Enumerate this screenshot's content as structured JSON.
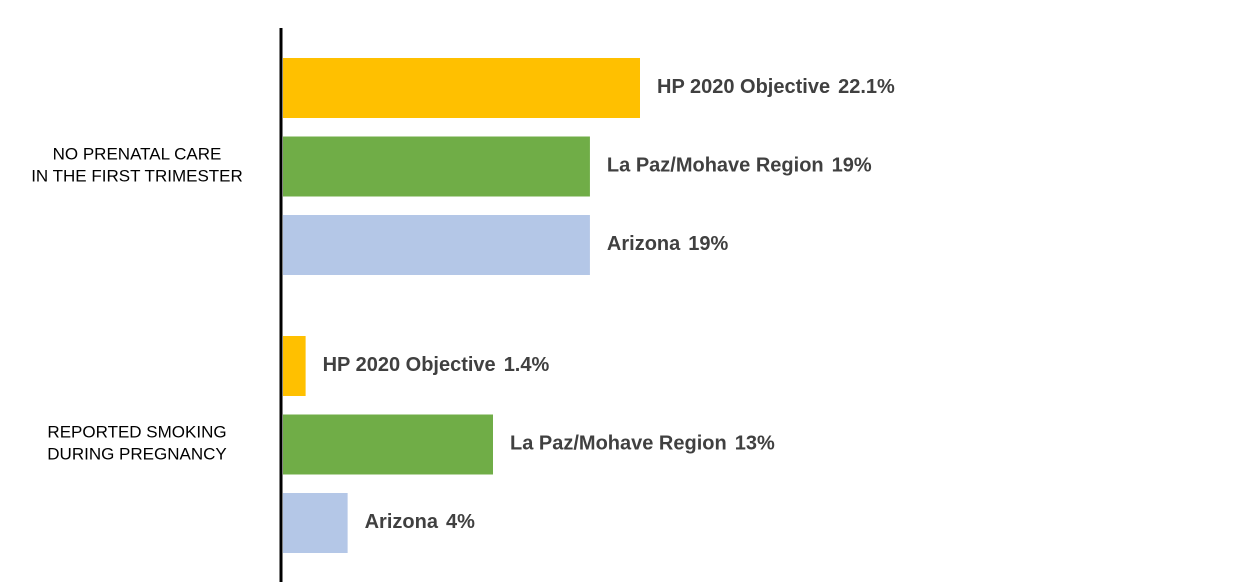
{
  "chart_data": {
    "type": "hbar",
    "categories": [
      "NO PRENATAL CARE\nIN THE FIRST TRIMESTER",
      "REPORTED SMOKING\nDURING PREGNANCY"
    ],
    "series": [
      {
        "name": "HP 2020 Objective",
        "color": "#FFC000",
        "values": [
          22.1,
          1.4
        ],
        "value_labels": [
          "22.1%",
          "1.4%"
        ]
      },
      {
        "name": "La Paz/Mohave Region",
        "color": "#70AD47",
        "values": [
          19,
          13
        ],
        "value_labels": [
          "19%",
          "13%"
        ]
      },
      {
        "name": "Arizona",
        "color": "#B4C7E7",
        "values": [
          19,
          4
        ],
        "value_labels": [
          "19%",
          "4%"
        ]
      }
    ]
  }
}
